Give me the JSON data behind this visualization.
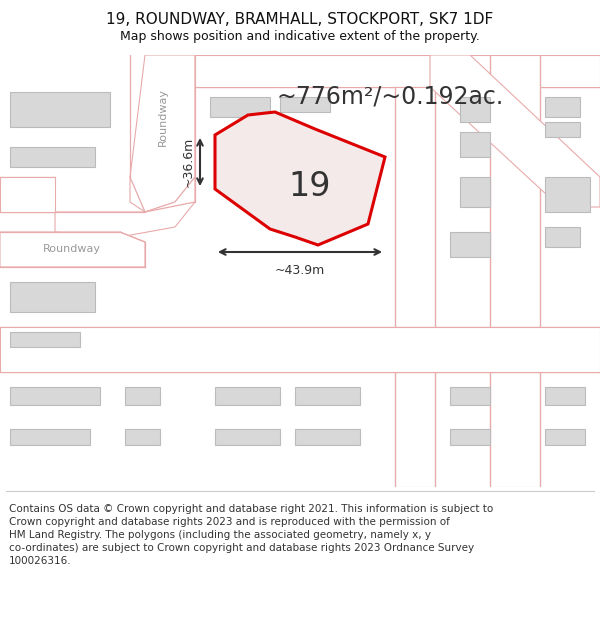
{
  "title": "19, ROUNDWAY, BRAMHALL, STOCKPORT, SK7 1DF",
  "subtitle": "Map shows position and indicative extent of the property.",
  "area_text": "~776m²/~0.192ac.",
  "number_label": "19",
  "dim_width": "~43.9m",
  "dim_height": "~36.6m",
  "footer": "Contains OS data © Crown copyright and database right 2021. This information is subject to\nCrown copyright and database rights 2023 and is reproduced with the permission of\nHM Land Registry. The polygons (including the associated geometry, namely x, y\nco-ordinates) are subject to Crown copyright and database rights 2023 Ordnance Survey\n100026316.",
  "bg_color": "#ffffff",
  "map_bg": "#f7f0f0",
  "building_color": "#d8d8d8",
  "building_edge_color": "#bbbbbb",
  "road_line_color": "#e8aaaa",
  "property_fill": "#f5eaea",
  "property_edge": "#dd0000",
  "dim_color": "#333333",
  "street_color": "#999999",
  "title_fontsize": 11,
  "subtitle_fontsize": 9,
  "area_fontsize": 17,
  "number_fontsize": 24,
  "dim_fontsize": 9,
  "street_fontsize": 8,
  "footer_fontsize": 7.5
}
